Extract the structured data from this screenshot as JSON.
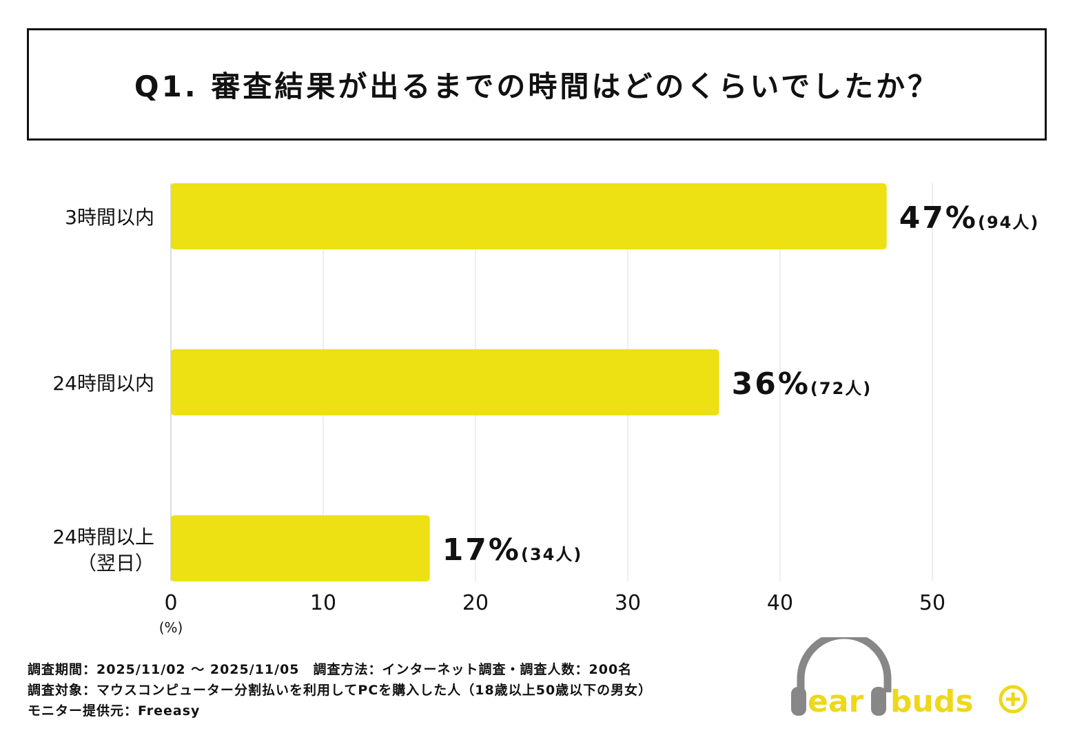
{
  "title": "Q1. 審査結果が出るまでの時間はどのくらいでしたか？",
  "chart_data": {
    "type": "bar",
    "orientation": "horizontal",
    "categories": [
      "3時間以内",
      "24時間以内",
      "24時間以上\n（翌日）"
    ],
    "values": [
      47,
      36,
      17
    ],
    "counts": [
      "(94人)",
      "(72人)",
      "(34人)"
    ],
    "value_labels": [
      "47%",
      "36%",
      "17%"
    ],
    "xlim": [
      0,
      50
    ],
    "xticks": [
      0,
      10,
      20,
      30,
      40,
      50
    ],
    "xunit": "(%)",
    "grid": true,
    "bar_color": "#EDE013"
  },
  "footer": {
    "line1": "調査期間：2025/11/02 ～ 2025/11/05　調査方法：インターネット調査・調査人数：200名",
    "line2": "調査対象：マウスコンピューター分割払いを利用してPCを購入した人（18歳以上50歳以下の男女）",
    "line3": "モニター提供元：Freeasy"
  },
  "logo": {
    "text": "earbuds",
    "gray": "#878787",
    "yellow": "#EDD81A"
  }
}
